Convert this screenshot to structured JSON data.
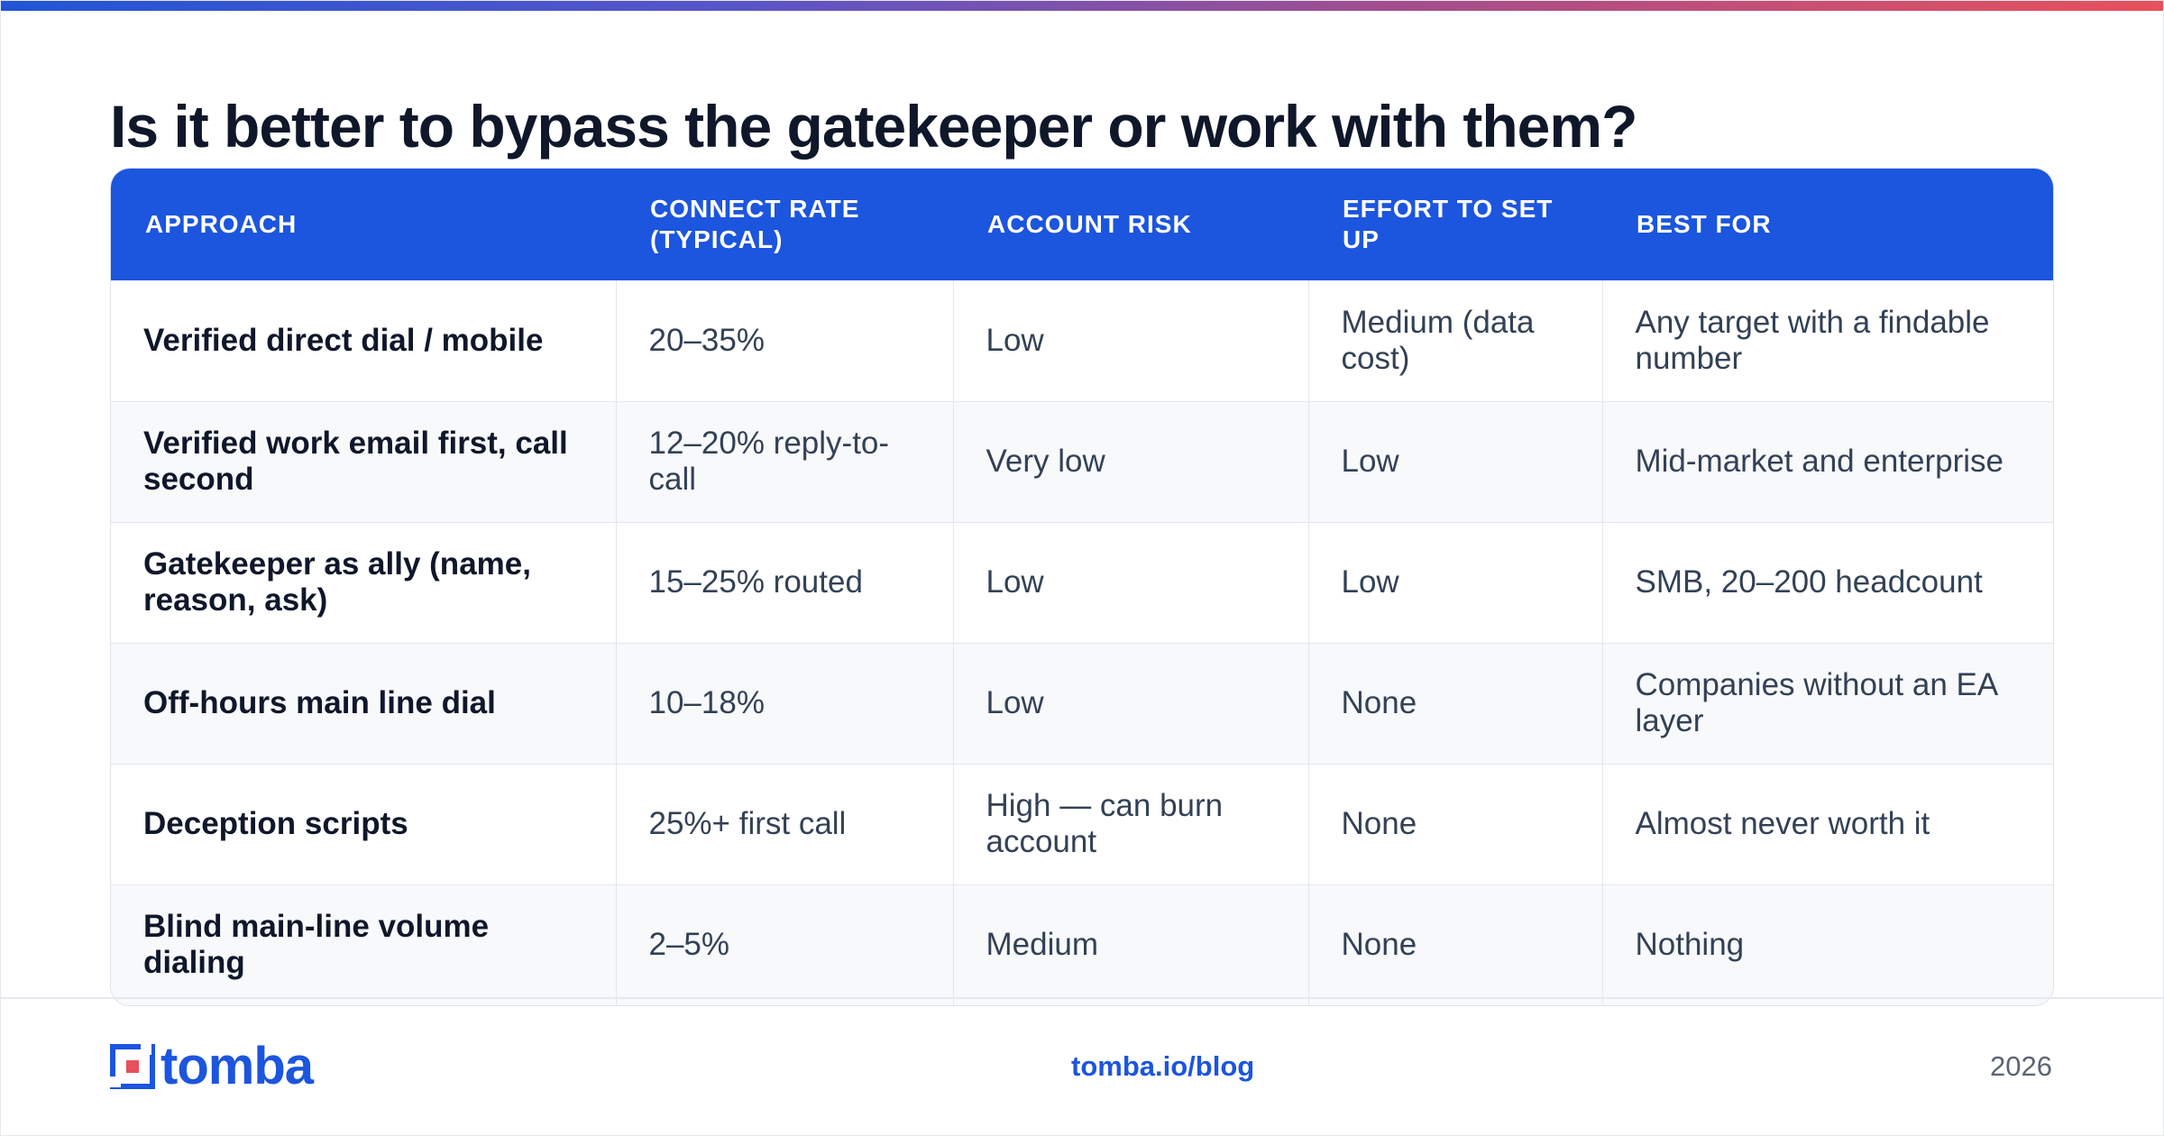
{
  "title": "Is it better to bypass the gatekeeper or work with them?",
  "table": {
    "headers": [
      "APPROACH",
      "CONNECT RATE (TYPICAL)",
      "ACCOUNT RISK",
      "EFFORT TO SET UP",
      "BEST FOR"
    ],
    "rows": [
      [
        "Verified direct dial / mobile",
        "20–35%",
        "Low",
        "Medium (data cost)",
        "Any target with a findable number"
      ],
      [
        "Verified work email first, call second",
        "12–20% reply-to-call",
        "Very low",
        "Low",
        "Mid-market and enterprise"
      ],
      [
        "Gatekeeper as ally (name, reason, ask)",
        "15–25% routed",
        "Low",
        "Low",
        "SMB, 20–200 headcount"
      ],
      [
        "Off-hours main line dial",
        "10–18%",
        "Low",
        "None",
        "Companies without an EA layer"
      ],
      [
        "Deception scripts",
        "25%+ first call",
        "High — can burn account",
        "None",
        "Almost never worth it"
      ],
      [
        "Blind main-line volume dialing",
        "2–5%",
        "Medium",
        "None",
        "Nothing"
      ]
    ]
  },
  "footer": {
    "logo_text": "tomba",
    "link": "tomba.io/blog",
    "year": "2026"
  },
  "colors": {
    "brand_blue": "#1c55de",
    "brand_red": "#e8505b",
    "title": "#0f172a"
  },
  "icons": {
    "logo_mark": "tomba-logo-icon"
  }
}
